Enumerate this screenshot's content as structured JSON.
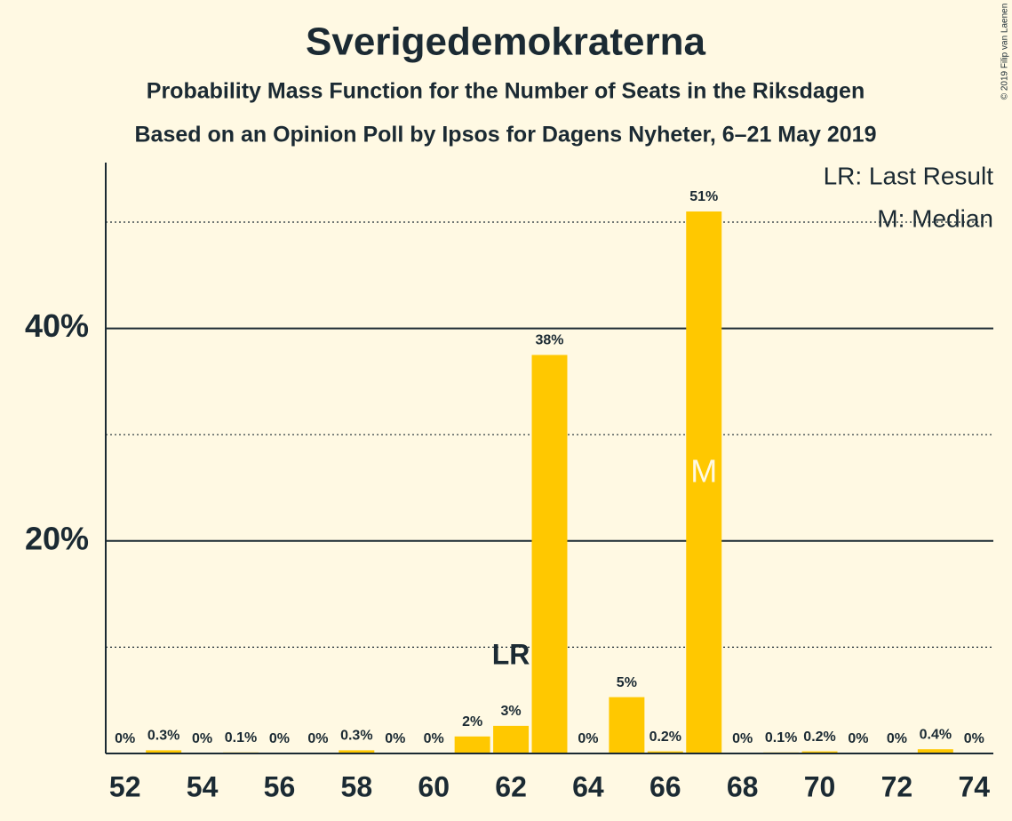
{
  "chart_data": {
    "type": "bar",
    "title": "Sverigedemokraterna",
    "subtitle": "Probability Mass Function for the Number of Seats in the Riksdagen",
    "subtitle2": "Based on an Opinion Poll by Ipsos for Dagens Nyheter, 6–21 May 2019",
    "copyright": "© 2019 Filip van Laenen",
    "x": [
      52,
      53,
      54,
      55,
      56,
      57,
      58,
      59,
      60,
      61,
      62,
      63,
      64,
      65,
      66,
      67,
      68,
      69,
      70,
      71,
      72,
      73,
      74
    ],
    "values": [
      0,
      0.3,
      0,
      0.1,
      0,
      0,
      0.3,
      0,
      0,
      1.6,
      2.6,
      37.5,
      0,
      5.3,
      0.2,
      51.0,
      0,
      0.1,
      0.2,
      0,
      0,
      0.4,
      0
    ],
    "value_labels": [
      "0%",
      "0.3%",
      "0%",
      "0.1%",
      "0%",
      "0%",
      "0.3%",
      "0%",
      "0%",
      "2%",
      "3%",
      "38%",
      "0%",
      "5%",
      "0.2%",
      "51%",
      "0%",
      "0.1%",
      "0.2%",
      "0%",
      "0%",
      "0.4%",
      "0%"
    ],
    "color": "#ffc800",
    "xlim": [
      51.5,
      74.5
    ],
    "xticks": [
      52,
      54,
      56,
      58,
      60,
      62,
      64,
      66,
      68,
      70,
      72,
      74
    ],
    "ylim": [
      0,
      55.6
    ],
    "yticks": [
      {
        "value": 20,
        "label": "20%"
      },
      {
        "value": 40,
        "label": "40%"
      }
    ],
    "minor_yticks": [
      10,
      30,
      50
    ],
    "grid": true,
    "last_result": {
      "x": 62,
      "label": "LR"
    },
    "median": {
      "x": 67,
      "label": "M"
    },
    "legend": [
      "LR: Last Result",
      "M: Median"
    ]
  }
}
